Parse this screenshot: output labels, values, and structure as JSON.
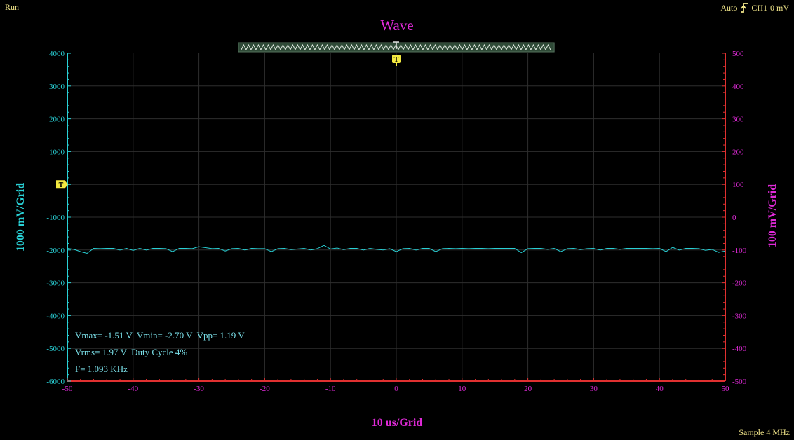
{
  "status": {
    "run": "Run",
    "trigger_mode": "Auto",
    "trigger_icon": "rising-edge-trigger-icon",
    "trigger_channel": "CH1",
    "trigger_level": "0 mV",
    "sample": "Sample 4 MHz"
  },
  "title": "Wave",
  "axes": {
    "left_title": "1000 mV/Grid",
    "right_title": "100 mV/Grid",
    "bottom_title": "10 us/Grid"
  },
  "measurements": {
    "line1": "Vmax= -1.51 V  Vmin= -2.70 V  Vpp= 1.19 V",
    "line2": "Vrms= 1.97 V  Duty Cycle 4%",
    "line3": "F= 1.093 KHz"
  },
  "markers": {
    "trigger_label": "T"
  },
  "colors": {
    "ch1": "#29d1d6",
    "ch2": "#e02ad8",
    "trigger": "#f2e840",
    "bottom_axis": "#e03030",
    "grid": "#2e2e2e",
    "background": "#000000"
  },
  "chart_data": {
    "type": "line",
    "title": "Wave",
    "xlabel": "10 us/Grid",
    "ylabel": "1000 mV/Grid",
    "y2label": "100 mV/Grid",
    "xlim": [
      -50,
      50
    ],
    "ylim": [
      -6000,
      4000
    ],
    "y2lim": [
      -500,
      500
    ],
    "x_ticks": [
      "-50",
      "-40",
      "-30",
      "-20",
      "-10",
      "0",
      "10",
      "20",
      "30",
      "40",
      "50"
    ],
    "y_ticks": [
      "4000",
      "3000",
      "2000",
      "1000",
      "0",
      "-1000",
      "-2000",
      "-3000",
      "-4000",
      "-5000",
      "-6000"
    ],
    "y2_ticks": [
      "500",
      "400",
      "300",
      "200",
      "100",
      "0",
      "-100",
      "-200",
      "-300",
      "-400",
      "-500"
    ],
    "grid": true,
    "series": [
      {
        "x": [
          -50,
          -49,
          -48,
          -47,
          -46,
          -45,
          -44,
          -43,
          -42,
          -41,
          -40,
          -39,
          -38,
          -37,
          -36,
          -35,
          -34,
          -33,
          -32,
          -31,
          -30,
          -29,
          -28,
          -27,
          -26,
          -25,
          -24,
          -23,
          -22,
          -21,
          -20,
          -19,
          -18,
          -17,
          -16,
          -15,
          -14,
          -13,
          -12,
          -11,
          -10,
          -9,
          -8,
          -7,
          -6,
          -5,
          -4,
          -3,
          -2,
          -1,
          0,
          1,
          2,
          3,
          4,
          5,
          6,
          7,
          8,
          9,
          10,
          11,
          12,
          13,
          14,
          15,
          16,
          17,
          18,
          19,
          20,
          21,
          22,
          23,
          24,
          25,
          26,
          27,
          28,
          29,
          30,
          31,
          32,
          33,
          34,
          35,
          36,
          37,
          38,
          39,
          40,
          41,
          42,
          43,
          44,
          45,
          46,
          47,
          48,
          49,
          50
        ],
        "values": [
          -1950,
          -1980,
          -2050,
          -2100,
          -1950,
          -1960,
          -1950,
          -1950,
          -2000,
          -1950,
          -2010,
          -1950,
          -2000,
          -1950,
          -1950,
          -1960,
          -2050,
          -1950,
          -1950,
          -1960,
          -1900,
          -1930,
          -1960,
          -1950,
          -2030,
          -1960,
          -1950,
          -2000,
          -1950,
          -1960,
          -1960,
          -2050,
          -1960,
          -1950,
          -1990,
          -1970,
          -1950,
          -2000,
          -1960,
          -1860,
          -1970,
          -1940,
          -1990,
          -1950,
          -1950,
          -2000,
          -1950,
          -1980,
          -2000,
          -1960,
          -2050,
          -1960,
          -1950,
          -2000,
          -1950,
          -1950,
          -2050,
          -1960,
          -1950,
          -1960,
          -1950,
          -1960,
          -1950,
          -1950,
          -1960,
          -1950,
          -1950,
          -1950,
          -1950,
          -2080,
          -1960,
          -1950,
          -1950,
          -1980,
          -1950,
          -2050,
          -1960,
          -1950,
          -1990,
          -1960,
          -1950,
          -2000,
          -1950,
          -1950,
          -1980,
          -1950,
          -1950,
          -1950,
          -1950,
          -1960,
          -1950,
          -2050,
          -1920,
          -2000,
          -1950,
          -1950,
          -1960,
          -2010,
          -1980,
          -2070,
          -2030
        ]
      }
    ]
  }
}
